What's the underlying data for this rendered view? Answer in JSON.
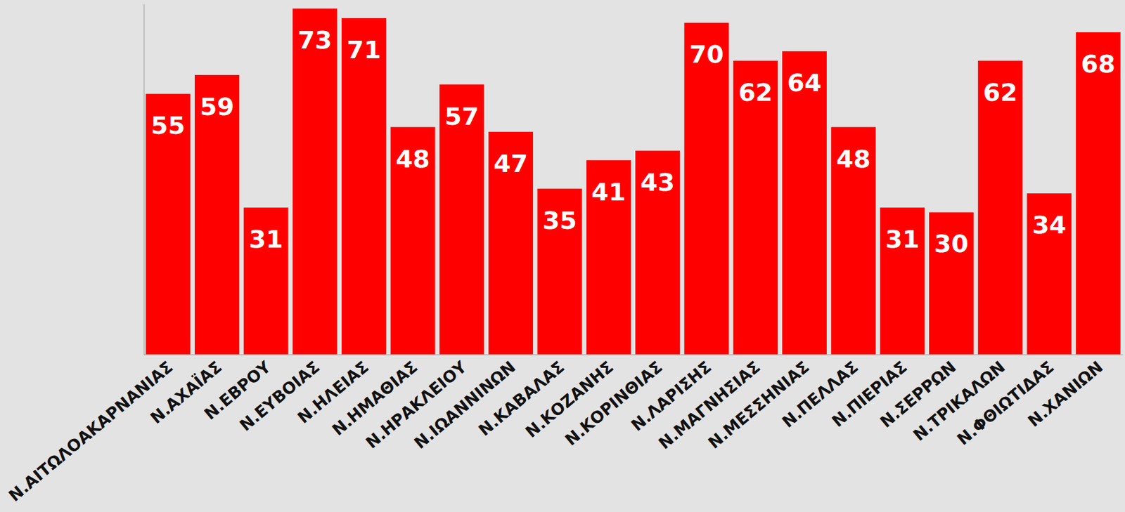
{
  "chart_data": {
    "type": "bar",
    "categories": [
      "Ν.ΑΙΤΩΛΟΑΚΑΡΝΑΝΙΑΣ",
      "Ν.ΑΧΑΪΑΣ",
      "Ν.ΕΒΡΟΥ",
      "Ν.ΕΥΒΟΙΑΣ",
      "Ν.ΗΛΕΙΑΣ",
      "Ν.ΗΜΑΘΙΑΣ",
      "Ν.ΗΡΑΚΛΕΙΟΥ",
      "Ν.ΙΩΑΝΝΙΝΩΝ",
      "Ν.ΚΑΒΑΛΑΣ",
      "Ν.ΚΟΖΑΝΗΣ",
      "Ν.ΚΟΡΙΝΘΙΑΣ",
      "Ν.ΛΑΡΙΣΗΣ",
      "Ν.ΜΑΓΝΗΣΙΑΣ",
      "Ν.ΜΕΣΣΗΝΙΑΣ",
      "Ν.ΠΕΛΛΑΣ",
      "Ν.ΠΙΕΡΙΑΣ",
      "Ν.ΣΕΡΡΩΝ",
      "Ν.ΤΡΙΚΑΛΩΝ",
      "Ν.ΦΘΙΩΤΙΔΑΣ",
      "Ν.ΧΑΝΙΩΝ"
    ],
    "values": [
      55,
      59,
      31,
      73,
      71,
      48,
      57,
      47,
      35,
      41,
      43,
      70,
      62,
      64,
      48,
      31,
      30,
      62,
      34,
      68
    ],
    "color": "#ff0000",
    "ylim": [
      0,
      74
    ],
    "yticks": [],
    "grid": false,
    "data_labels": true,
    "tick_labels": "x"
  }
}
